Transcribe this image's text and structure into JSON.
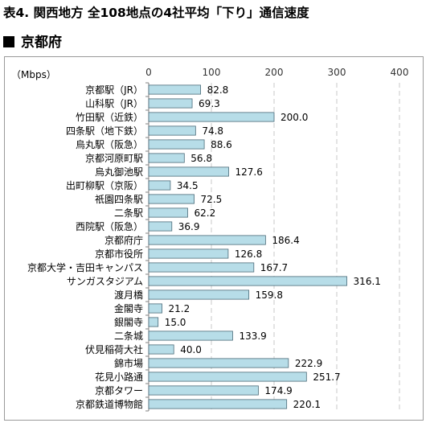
{
  "title": "表4. 関西地方 全108地点の4社平均「下り」通信速度",
  "subtitle": "京都府",
  "chart_data": {
    "type": "bar",
    "orientation": "horizontal",
    "unit_label": "（Mbps）",
    "xlim": [
      0,
      400
    ],
    "ticks": [
      0,
      100,
      200,
      300,
      400
    ],
    "grid": true,
    "bar_color": "#b7dde8",
    "bar_border": "#4a6a78",
    "categories": [
      "京都駅（JR）",
      "山科駅（JR）",
      "竹田駅（近鉄）",
      "四条駅（地下鉄）",
      "烏丸駅（阪急）",
      "京都河原町駅",
      "烏丸御池駅",
      "出町柳駅（京阪）",
      "祇園四条駅",
      "二条駅",
      "西院駅（阪急）",
      "京都府庁",
      "京都市役所",
      "京都大学・吉田キャンパス",
      "サンガスタジアム",
      "渡月橋",
      "金閣寺",
      "銀閣寺",
      "二条城",
      "伏見稲荷大社",
      "錦市場",
      "花見小路通",
      "京都タワー",
      "京都鉄道博物館"
    ],
    "values": [
      82.8,
      69.3,
      200.0,
      74.8,
      88.6,
      56.8,
      127.6,
      34.5,
      72.5,
      62.2,
      36.9,
      186.4,
      126.8,
      167.7,
      316.1,
      159.8,
      21.2,
      15.0,
      133.9,
      40.0,
      222.9,
      251.7,
      174.9,
      220.1
    ]
  }
}
